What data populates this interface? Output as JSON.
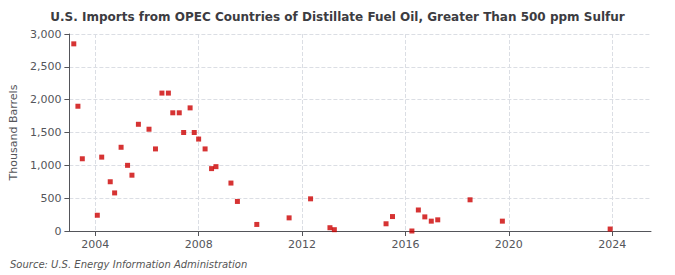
{
  "chart_data": {
    "type": "scatter",
    "title": "U.S. Imports from OPEC Countries of Distillate Fuel Oil, Greater Than 500 ppm Sulfur",
    "ylabel": "Thousand Barrels",
    "annotation": "Source: U.S. Energy Information Administration",
    "color": "#cc0000",
    "marker": "square",
    "grid": true,
    "xlim": [
      2003.0,
      2025.5
    ],
    "xticks": [
      2004,
      2008,
      2012,
      2016,
      2020,
      2024
    ],
    "ylim": [
      0,
      3000
    ],
    "yticks": [
      0,
      500,
      {
        "value": 1000,
        "label": "1,000"
      },
      {
        "value": 1500,
        "label": "1,500"
      },
      {
        "value": 2000,
        "label": "2,000"
      },
      {
        "value": 2500,
        "label": "2,500"
      },
      {
        "value": 3000,
        "label": "3,000"
      }
    ],
    "x": [
      2003.17,
      2003.33,
      2003.5,
      2004.08,
      2004.25,
      2004.58,
      2004.75,
      2005.0,
      2005.25,
      2005.42,
      2005.67,
      2006.08,
      2006.33,
      2006.58,
      2006.83,
      2007.0,
      2007.25,
      2007.42,
      2007.67,
      2007.83,
      2008.0,
      2008.25,
      2008.5,
      2008.67,
      2009.25,
      2009.5,
      2010.25,
      2011.5,
      2012.33,
      2013.08,
      2013.25,
      2015.25,
      2015.5,
      2016.25,
      2016.5,
      2016.75,
      2017.0,
      2017.25,
      2018.5,
      2019.75,
      2023.92
    ],
    "values": [
      2850,
      1900,
      1100,
      240,
      1125,
      750,
      580,
      1275,
      1000,
      850,
      1625,
      1550,
      1250,
      2100,
      2100,
      1800,
      1800,
      1500,
      1875,
      1500,
      1400,
      1250,
      950,
      980,
      730,
      450,
      100,
      200,
      490,
      50,
      20,
      110,
      220,
      0,
      320,
      215,
      150,
      170,
      475,
      150,
      30
    ]
  }
}
